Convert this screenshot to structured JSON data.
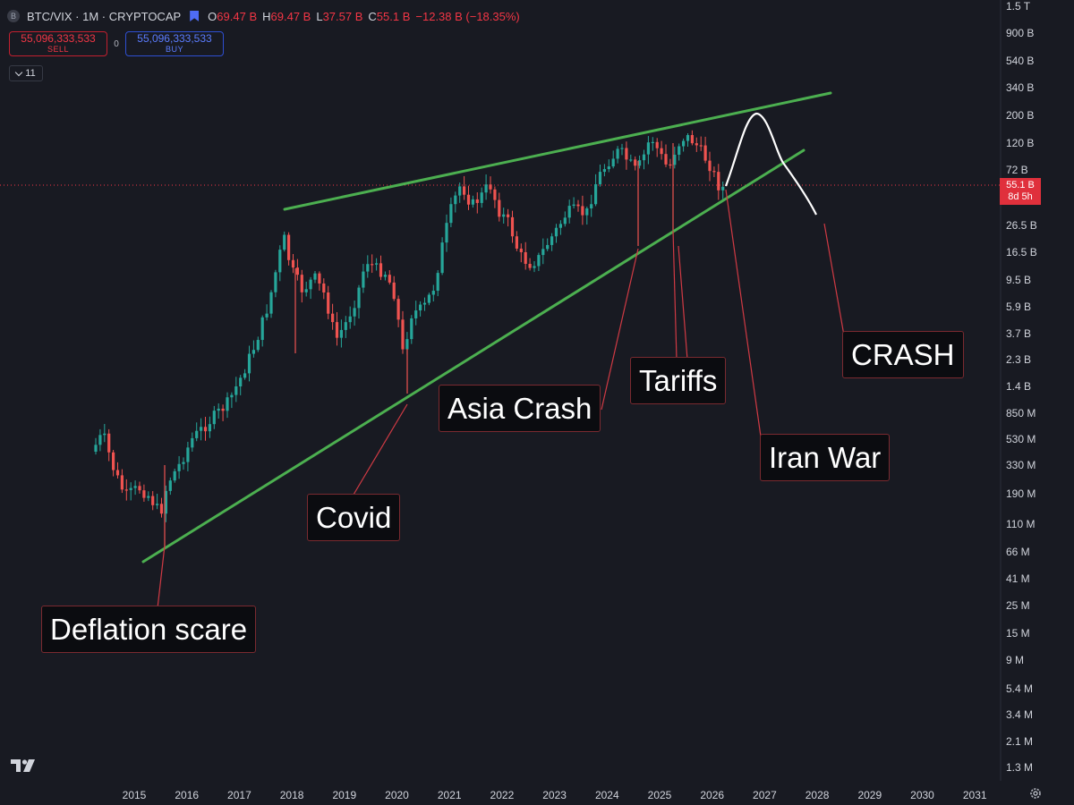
{
  "header": {
    "symbol_icon": "B",
    "title": "BTC/VIX · 1M · CRYPTOCAP",
    "flag_icon": "bookmark-flag-icon",
    "ohlc": [
      {
        "k": "O",
        "v": "69.47 B"
      },
      {
        "k": "H",
        "v": "69.47 B"
      },
      {
        "k": "L",
        "v": "37.57 B"
      },
      {
        "k": "C",
        "v": "55.1 B"
      }
    ],
    "change": "−12.38 B (−18.35%)"
  },
  "trade": {
    "sell_price": "55,096,333,533",
    "sell_label": "SELL",
    "spread": "0",
    "buy_price": "55,096,333,533",
    "buy_label": "BUY"
  },
  "indicators": {
    "count": "11"
  },
  "price_axis": {
    "ticks": [
      "1.5 T",
      "900 B",
      "540 B",
      "340 B",
      "200 B",
      "120 B",
      "72 B",
      "26.5 B",
      "16.5 B",
      "9.5 B",
      "5.9 B",
      "3.7 B",
      "2.3 B",
      "1.4 B",
      "850 M",
      "530 M",
      "330 M",
      "190 M",
      "110 M",
      "66 M",
      "41 M",
      "25 M",
      "15 M",
      "9 M",
      "5.4 M",
      "3.4 M",
      "2.1 M",
      "1.3 M"
    ],
    "current_price": "55.1 B",
    "countdown": "8d 5h"
  },
  "time_axis": {
    "ticks": [
      "2015",
      "2016",
      "2017",
      "2018",
      "2019",
      "2020",
      "2021",
      "2022",
      "2023",
      "2024",
      "2025",
      "2026",
      "2027",
      "2028",
      "2029",
      "2030",
      "2031"
    ]
  },
  "annotations": [
    {
      "id": "deflation",
      "text": "Deflation scare"
    },
    {
      "id": "covid",
      "text": "Covid"
    },
    {
      "id": "asia",
      "text": "Asia Crash"
    },
    {
      "id": "tariffs",
      "text": "Tariffs"
    },
    {
      "id": "iran",
      "text": "Iran War"
    },
    {
      "id": "crash",
      "text": "CRASH"
    }
  ],
  "colors": {
    "background": "#181a22",
    "up_candle": "#26a69a",
    "down_candle": "#ef5350",
    "trendline": "#4caf50",
    "projection": "#ffffff",
    "price_line": "#f23645"
  },
  "icons": {
    "logo": "tradingview-logo-icon",
    "settings": "gear-icon",
    "collapse": "chevron-down-icon"
  }
}
